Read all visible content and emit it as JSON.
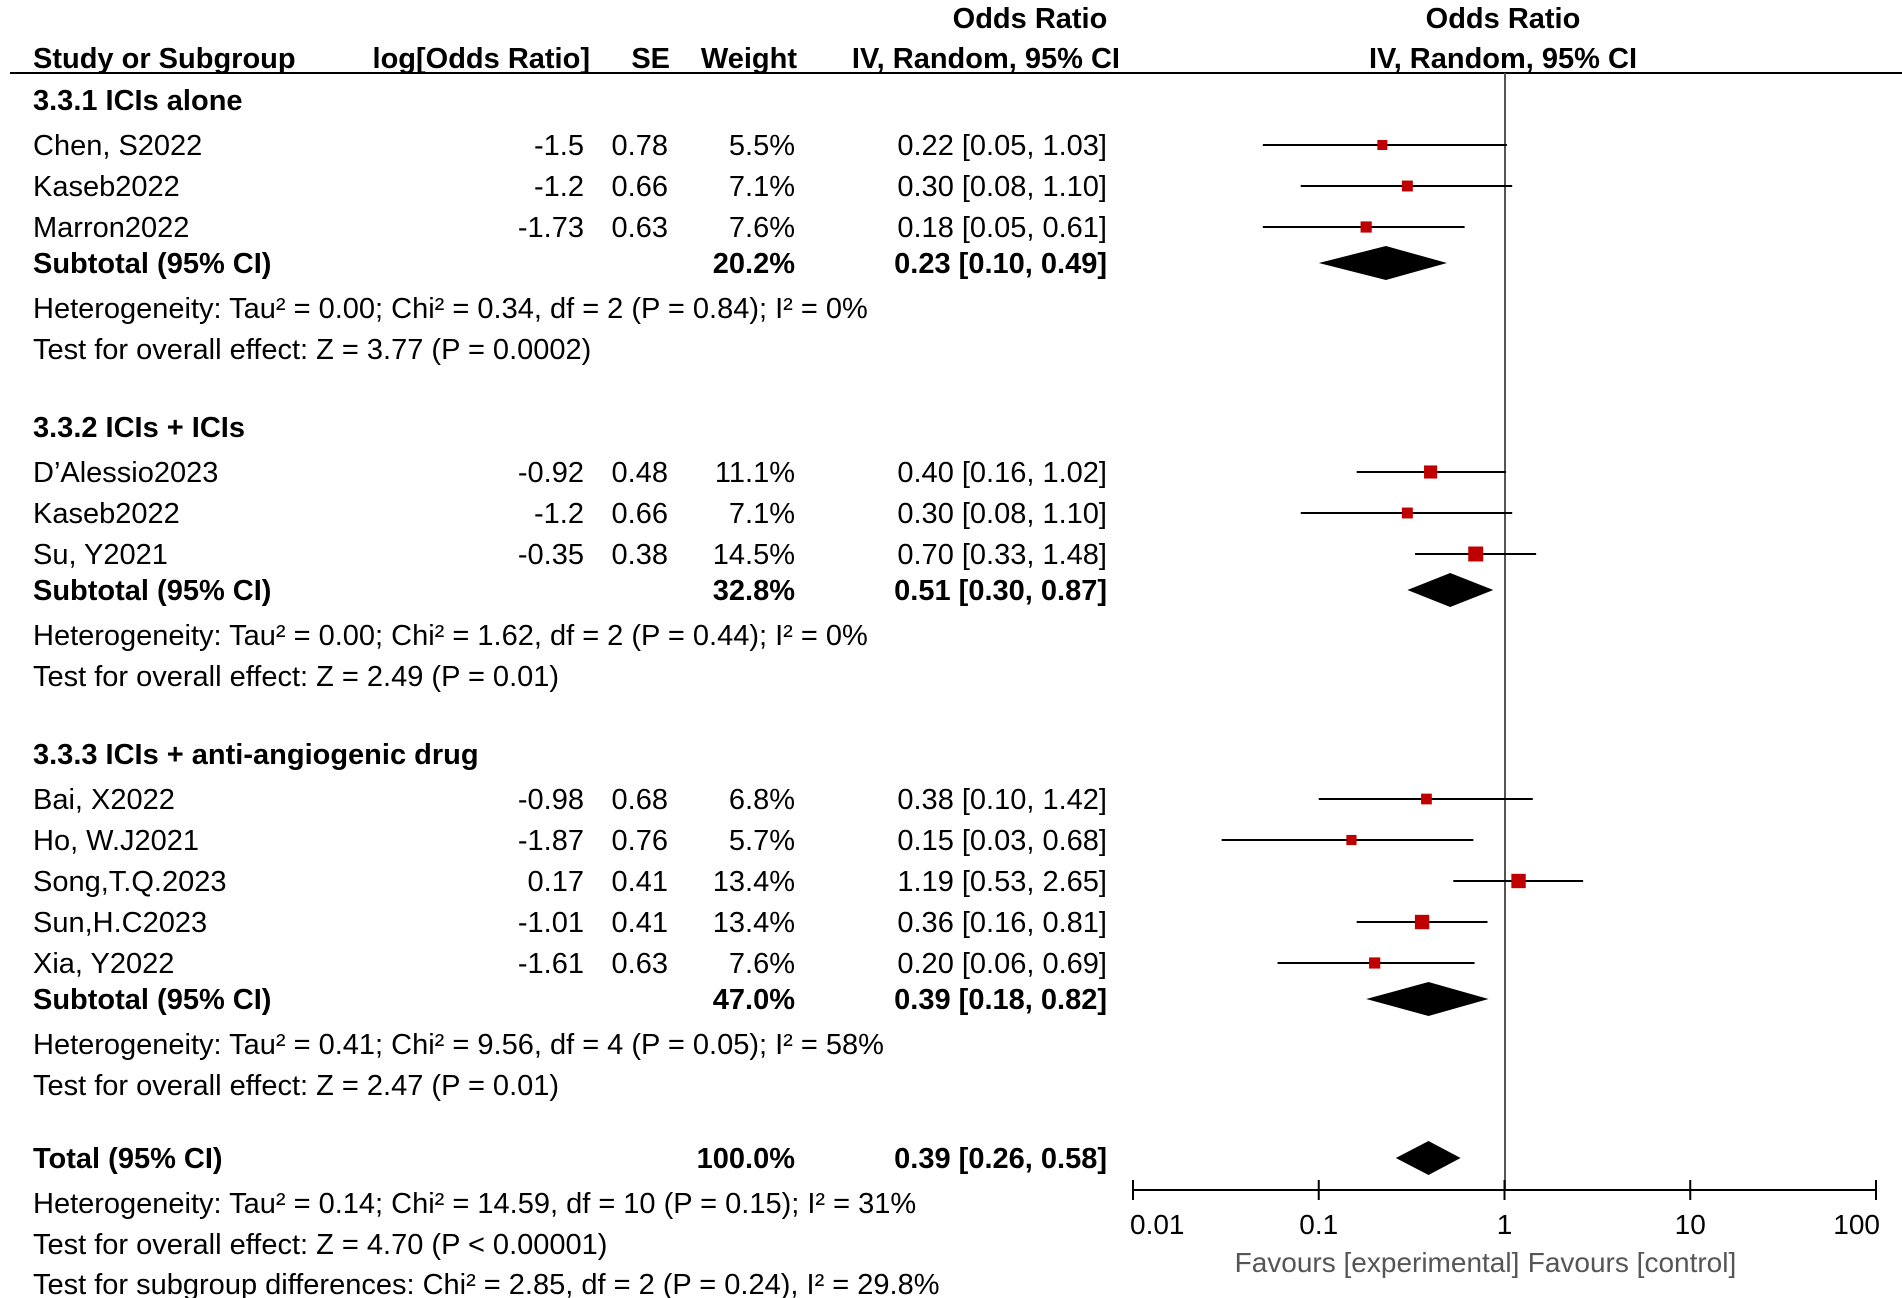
{
  "headers": {
    "study": "Study or Subgroup",
    "log_or": "log[Odds Ratio]",
    "se": "SE",
    "weight": "Weight",
    "or_title": "Odds Ratio",
    "or_method": "IV, Random, 95% CI",
    "plot_title": "Odds Ratio",
    "plot_method": "IV, Random, 95% CI"
  },
  "groups": [
    {
      "title": "3.3.1 ICIs alone",
      "studies": [
        {
          "name": "Chen, S2022",
          "log_or": "-1.5",
          "se": "0.78",
          "weight": "5.5%",
          "ci_text": "0.22 [0.05, 1.03]",
          "or": 0.22,
          "lo": 0.05,
          "hi": 1.03,
          "w": 5.5
        },
        {
          "name": "Kaseb2022",
          "log_or": "-1.2",
          "se": "0.66",
          "weight": "7.1%",
          "ci_text": "0.30 [0.08, 1.10]",
          "or": 0.3,
          "lo": 0.08,
          "hi": 1.1,
          "w": 7.1
        },
        {
          "name": "Marron2022",
          "log_or": "-1.73",
          "se": "0.63",
          "weight": "7.6%",
          "ci_text": "0.18 [0.05, 0.61]",
          "or": 0.18,
          "lo": 0.05,
          "hi": 0.61,
          "w": 7.6
        }
      ],
      "subtotal": {
        "label": "Subtotal (95% CI)",
        "weight": "20.2%",
        "ci_text": "0.23 [0.10, 0.49]",
        "or": 0.23,
        "lo": 0.1,
        "hi": 0.49
      },
      "heterogeneity": "Heterogeneity: Tau² = 0.00; Chi² = 0.34, df = 2 (P = 0.84); I² = 0%",
      "overall": "Test for overall effect: Z = 3.77 (P = 0.0002)"
    },
    {
      "title": "3.3.2 ICIs + ICIs",
      "studies": [
        {
          "name": "D’Alessio2023",
          "log_or": "-0.92",
          "se": "0.48",
          "weight": "11.1%",
          "ci_text": "0.40 [0.16, 1.02]",
          "or": 0.4,
          "lo": 0.16,
          "hi": 1.02,
          "w": 11.1
        },
        {
          "name": "Kaseb2022",
          "log_or": "-1.2",
          "se": "0.66",
          "weight": "7.1%",
          "ci_text": "0.30 [0.08, 1.10]",
          "or": 0.3,
          "lo": 0.08,
          "hi": 1.1,
          "w": 7.1
        },
        {
          "name": "Su, Y2021",
          "log_or": "-0.35",
          "se": "0.38",
          "weight": "14.5%",
          "ci_text": "0.70 [0.33, 1.48]",
          "or": 0.7,
          "lo": 0.33,
          "hi": 1.48,
          "w": 14.5
        }
      ],
      "subtotal": {
        "label": "Subtotal (95% CI)",
        "weight": "32.8%",
        "ci_text": "0.51 [0.30, 0.87]",
        "or": 0.51,
        "lo": 0.3,
        "hi": 0.87
      },
      "heterogeneity": "Heterogeneity: Tau² = 0.00; Chi² = 1.62, df = 2 (P = 0.44); I² = 0%",
      "overall": "Test for overall effect: Z = 2.49 (P = 0.01)"
    },
    {
      "title": "3.3.3 ICIs + anti-angiogenic drug",
      "studies": [
        {
          "name": "Bai, X2022",
          "log_or": "-0.98",
          "se": "0.68",
          "weight": "6.8%",
          "ci_text": "0.38 [0.10, 1.42]",
          "or": 0.38,
          "lo": 0.1,
          "hi": 1.42,
          "w": 6.8
        },
        {
          "name": "Ho, W.J2021",
          "log_or": "-1.87",
          "se": "0.76",
          "weight": "5.7%",
          "ci_text": "0.15 [0.03, 0.68]",
          "or": 0.15,
          "lo": 0.03,
          "hi": 0.68,
          "w": 5.7
        },
        {
          "name": "Song,T.Q.2023",
          "log_or": "0.17",
          "se": "0.41",
          "weight": "13.4%",
          "ci_text": "1.19 [0.53, 2.65]",
          "or": 1.19,
          "lo": 0.53,
          "hi": 2.65,
          "w": 13.4
        },
        {
          "name": "Sun,H.C2023",
          "log_or": "-1.01",
          "se": "0.41",
          "weight": "13.4%",
          "ci_text": "0.36 [0.16, 0.81]",
          "or": 0.36,
          "lo": 0.16,
          "hi": 0.81,
          "w": 13.4
        },
        {
          "name": "Xia, Y2022",
          "log_or": "-1.61",
          "se": "0.63",
          "weight": "7.6%",
          "ci_text": "0.20 [0.06, 0.69]",
          "or": 0.2,
          "lo": 0.06,
          "hi": 0.69,
          "w": 7.6
        }
      ],
      "subtotal": {
        "label": "Subtotal (95% CI)",
        "weight": "47.0%",
        "ci_text": "0.39 [0.18, 0.82]",
        "or": 0.39,
        "lo": 0.18,
        "hi": 0.82
      },
      "heterogeneity": "Heterogeneity: Tau² = 0.41; Chi² = 9.56, df = 4 (P = 0.05); I² = 58%",
      "overall": "Test for overall effect: Z = 2.47 (P = 0.01)"
    }
  ],
  "total": {
    "label": "Total (95% CI)",
    "weight": "100.0%",
    "ci_text": "0.39 [0.26, 0.58]",
    "or": 0.39,
    "lo": 0.26,
    "hi": 0.58,
    "heterogeneity": "Heterogeneity: Tau² = 0.14; Chi² = 14.59, df = 10 (P = 0.15); I² = 31%",
    "overall": "Test for overall effect: Z = 4.70 (P < 0.00001)",
    "subgroup_diff": "Test for subgroup differences: Chi² = 2.85, df = 2 (P = 0.24), I² = 29.8%"
  },
  "axis": {
    "ticks": [
      "0.01",
      "0.1",
      "1",
      "10",
      "100"
    ],
    "tick_values": [
      0.01,
      0.1,
      1,
      10,
      100
    ],
    "favours_left": "Favours [experimental]",
    "favours_right": "Favours [control]"
  },
  "colors": {
    "marker": "#c00000",
    "line": "#000000",
    "text": "#1a1a1a",
    "favours": "#555555"
  },
  "chart_data": {
    "type": "scatter",
    "title": "Odds Ratio",
    "xlabel": "IV, Random, 95% CI",
    "xscale": "log",
    "xlim": [
      0.01,
      100
    ],
    "reference_line": 1,
    "series": [
      {
        "name": "3.3.1 ICIs alone",
        "labels": [
          "Chen, S2022",
          "Kaseb2022",
          "Marron2022"
        ],
        "x": [
          0.22,
          0.3,
          0.18
        ],
        "ci_low": [
          0.05,
          0.08,
          0.05
        ],
        "ci_high": [
          1.03,
          1.1,
          0.61
        ],
        "weight": [
          5.5,
          7.1,
          7.6
        ],
        "subtotal": [
          0.23,
          0.1,
          0.49
        ]
      },
      {
        "name": "3.3.2 ICIs + ICIs",
        "labels": [
          "D’Alessio2023",
          "Kaseb2022",
          "Su, Y2021"
        ],
        "x": [
          0.4,
          0.3,
          0.7
        ],
        "ci_low": [
          0.16,
          0.08,
          0.33
        ],
        "ci_high": [
          1.02,
          1.1,
          1.48
        ],
        "weight": [
          11.1,
          7.1,
          14.5
        ],
        "subtotal": [
          0.51,
          0.3,
          0.87
        ]
      },
      {
        "name": "3.3.3 ICIs + anti-angiogenic drug",
        "labels": [
          "Bai, X2022",
          "Ho, W.J2021",
          "Song,T.Q.2023",
          "Sun,H.C2023",
          "Xia, Y2022"
        ],
        "x": [
          0.38,
          0.15,
          1.19,
          0.36,
          0.2
        ],
        "ci_low": [
          0.1,
          0.03,
          0.53,
          0.16,
          0.06
        ],
        "ci_high": [
          1.42,
          0.68,
          2.65,
          0.81,
          0.69
        ],
        "weight": [
          6.8,
          5.7,
          13.4,
          13.4,
          7.6
        ],
        "subtotal": [
          0.39,
          0.18,
          0.82
        ]
      }
    ],
    "total": [
      0.39,
      0.26,
      0.58
    ]
  }
}
